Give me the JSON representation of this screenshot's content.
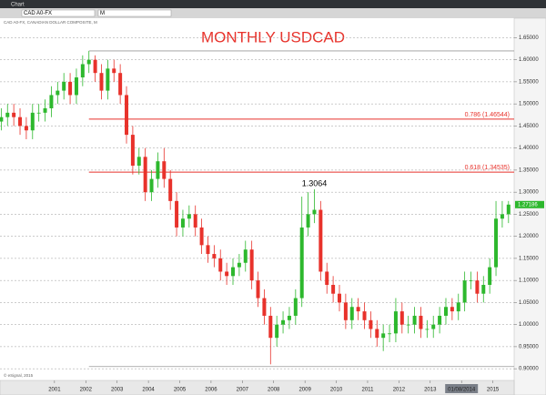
{
  "window_title": "Chart",
  "symbol": "CAD A0-FX",
  "interval": "M",
  "info_line": "CAD A0-FX, CANADIAN DOLLAR COMPOSITE, M",
  "footer": "© eSignal, 2015",
  "chart_data": {
    "type": "candlestick",
    "title": "MONTHLY USDCAD",
    "x": [
      1999.3,
      1999.5,
      1999.7,
      1999.9,
      2000.1,
      2000.3,
      2000.5,
      2000.7,
      2000.9,
      2001.1,
      2001.3,
      2001.5,
      2001.7,
      2001.9,
      2002.1,
      2002.3,
      2002.5,
      2002.7,
      2002.9,
      2003.1,
      2003.3,
      2003.5,
      2003.7,
      2003.9,
      2004.1,
      2004.3,
      2004.5,
      2004.7,
      2004.9,
      2005.1,
      2005.3,
      2005.5,
      2005.7,
      2005.9,
      2006.1,
      2006.3,
      2006.5,
      2006.7,
      2006.9,
      2007.1,
      2007.3,
      2007.5,
      2007.7,
      2007.9,
      2008.1,
      2008.3,
      2008.5,
      2008.7,
      2008.9,
      2009.1,
      2009.3,
      2009.5,
      2009.7,
      2009.9,
      2010.1,
      2010.3,
      2010.5,
      2010.7,
      2010.9,
      2011.1,
      2011.3,
      2011.5,
      2011.7,
      2011.9,
      2012.1,
      2012.3,
      2012.5,
      2012.7,
      2012.9,
      2013.1,
      2013.3,
      2013.5,
      2013.7,
      2013.9,
      2014.1,
      2014.3,
      2014.5,
      2014.7,
      2014.9,
      2015.1,
      2015.3,
      2015.5
    ],
    "open": [
      1.46,
      1.47,
      1.48,
      1.47,
      1.45,
      1.44,
      1.48,
      1.48,
      1.49,
      1.52,
      1.53,
      1.55,
      1.52,
      1.56,
      1.59,
      1.6,
      1.57,
      1.53,
      1.58,
      1.57,
      1.52,
      1.43,
      1.36,
      1.38,
      1.3,
      1.33,
      1.37,
      1.33,
      1.28,
      1.22,
      1.24,
      1.25,
      1.22,
      1.18,
      1.16,
      1.15,
      1.12,
      1.11,
      1.13,
      1.14,
      1.17,
      1.1,
      1.06,
      1.02,
      0.97,
      1.0,
      1.01,
      1.02,
      1.06,
      1.22,
      1.25,
      1.26,
      1.12,
      1.09,
      1.07,
      1.05,
      1.01,
      1.04,
      1.03,
      1.01,
      0.99,
      0.97,
      0.98,
      0.98,
      1.03,
      1.0,
      1.0,
      1.02,
      0.99,
      0.99,
      1.0,
      1.02,
      1.04,
      1.03,
      1.05,
      1.1,
      1.1,
      1.07,
      1.09,
      1.13,
      1.24,
      1.25
    ],
    "high": [
      1.49,
      1.5,
      1.5,
      1.49,
      1.47,
      1.5,
      1.5,
      1.51,
      1.54,
      1.55,
      1.57,
      1.57,
      1.58,
      1.61,
      1.62,
      1.61,
      1.59,
      1.6,
      1.6,
      1.59,
      1.54,
      1.45,
      1.4,
      1.4,
      1.35,
      1.39,
      1.4,
      1.35,
      1.3,
      1.26,
      1.27,
      1.27,
      1.24,
      1.2,
      1.18,
      1.17,
      1.14,
      1.15,
      1.16,
      1.19,
      1.19,
      1.12,
      1.08,
      1.04,
      1.02,
      1.03,
      1.04,
      1.08,
      1.29,
      1.3,
      1.3064,
      1.28,
      1.14,
      1.11,
      1.09,
      1.07,
      1.06,
      1.06,
      1.05,
      1.03,
      1.01,
      1.0,
      1.0,
      1.06,
      1.05,
      1.02,
      1.04,
      1.04,
      1.01,
      1.02,
      1.04,
      1.06,
      1.06,
      1.07,
      1.12,
      1.12,
      1.12,
      1.11,
      1.15,
      1.28,
      1.28,
      1.28
    ],
    "low": [
      1.44,
      1.45,
      1.45,
      1.43,
      1.42,
      1.42,
      1.46,
      1.46,
      1.47,
      1.5,
      1.51,
      1.5,
      1.5,
      1.54,
      1.57,
      1.55,
      1.51,
      1.51,
      1.55,
      1.5,
      1.41,
      1.34,
      1.34,
      1.28,
      1.28,
      1.31,
      1.31,
      1.26,
      1.2,
      1.2,
      1.22,
      1.2,
      1.16,
      1.14,
      1.13,
      1.1,
      1.09,
      1.09,
      1.11,
      1.12,
      1.08,
      1.04,
      1.0,
      0.91,
      0.95,
      0.98,
      0.99,
      1.0,
      1.04,
      1.2,
      1.23,
      1.1,
      1.07,
      1.05,
      1.03,
      0.99,
      0.99,
      1.01,
      0.99,
      0.97,
      0.95,
      0.94,
      0.96,
      0.96,
      0.98,
      0.98,
      0.98,
      0.97,
      0.97,
      0.97,
      0.98,
      1.0,
      1.01,
      1.01,
      1.03,
      1.08,
      1.05,
      1.05,
      1.07,
      1.11,
      1.22,
      1.23
    ],
    "close": [
      1.47,
      1.48,
      1.47,
      1.45,
      1.44,
      1.48,
      1.48,
      1.49,
      1.52,
      1.53,
      1.55,
      1.52,
      1.56,
      1.59,
      1.6,
      1.57,
      1.53,
      1.58,
      1.57,
      1.52,
      1.43,
      1.36,
      1.38,
      1.3,
      1.33,
      1.37,
      1.33,
      1.28,
      1.22,
      1.24,
      1.25,
      1.22,
      1.18,
      1.16,
      1.15,
      1.12,
      1.11,
      1.13,
      1.14,
      1.17,
      1.1,
      1.06,
      1.02,
      0.97,
      1.0,
      1.01,
      1.02,
      1.06,
      1.22,
      1.25,
      1.26,
      1.12,
      1.09,
      1.07,
      1.05,
      1.01,
      1.04,
      1.03,
      1.01,
      0.99,
      0.97,
      0.98,
      0.98,
      1.03,
      1.0,
      1.0,
      1.02,
      0.99,
      0.99,
      1.0,
      1.02,
      1.04,
      1.03,
      1.05,
      1.1,
      1.1,
      1.07,
      1.09,
      1.13,
      1.24,
      1.25,
      1.27186
    ],
    "up_color": "#2db82d",
    "down_color": "#e8322b",
    "xlim": [
      1999.26,
      2015.68
    ],
    "xticks": [
      2001,
      2002,
      2003,
      2004,
      2005,
      2006,
      2007,
      2008,
      2009,
      2010,
      2011,
      2012,
      2013,
      {
        "value": 2014,
        "label": "01/08/2014"
      },
      2015
    ],
    "ylim": [
      0.89,
      1.69
    ],
    "yticks": [
      {
        "value": 0.9,
        "label": "0.90000"
      },
      {
        "value": 0.95,
        "label": "0.95000"
      },
      {
        "value": 1.0,
        "label": "1.00000"
      },
      {
        "value": 1.05,
        "label": "1.05000"
      },
      {
        "value": 1.1,
        "label": "1.10000"
      },
      {
        "value": 1.15,
        "label": "1.15000"
      },
      {
        "value": 1.2,
        "label": "1.20000"
      },
      {
        "value": 1.25,
        "label": "1.25000"
      },
      {
        "value": 1.3,
        "label": "1.30000"
      },
      {
        "value": 1.35,
        "label": "1.35000"
      },
      {
        "value": 1.4,
        "label": "1.40000"
      },
      {
        "value": 1.45,
        "label": "1.45000"
      },
      {
        "value": 1.5,
        "label": "1.50000"
      },
      {
        "value": 1.55,
        "label": "1.55000"
      },
      {
        "value": 1.6,
        "label": "1.60000"
      },
      {
        "value": 1.65,
        "label": "1.65000"
      }
    ],
    "grid": true,
    "fib_levels": [
      {
        "value": 1.46544,
        "label": "0.786 (1.46544)",
        "color": "#e8322b"
      },
      {
        "value": 1.34535,
        "label": "0.618 (1.34535)",
        "color": "#e8322b"
      }
    ],
    "fib_range": [
      1.62,
      0.905
    ]
  }
}
